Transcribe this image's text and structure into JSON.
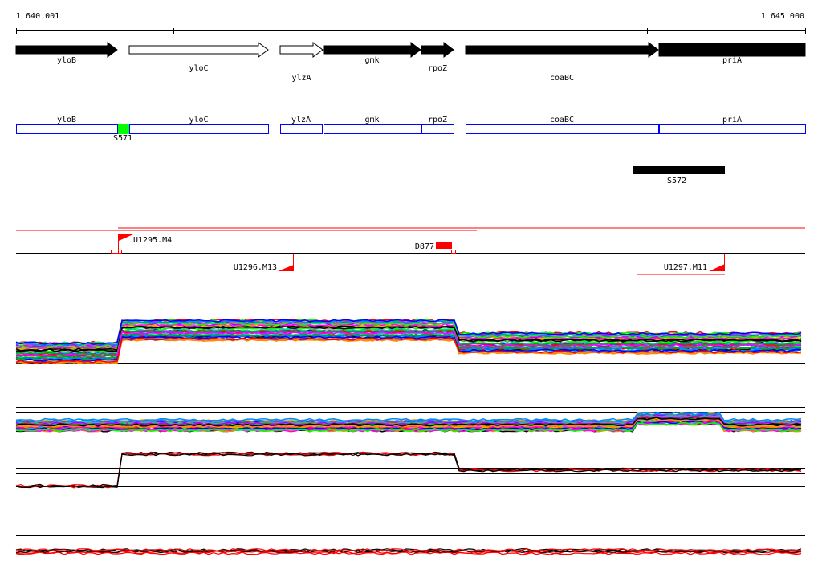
{
  "axis": {
    "start_label": "1 640 001",
    "end_label": "1 645 000"
  },
  "genes": [
    {
      "name": "yloB",
      "strand": "filled"
    },
    {
      "name": "yloC",
      "strand": "open"
    },
    {
      "name": "ylzA",
      "strand": "open"
    },
    {
      "name": "gmk",
      "strand": "filled"
    },
    {
      "name": "rpoZ",
      "strand": "filled"
    },
    {
      "name": "coaBC",
      "strand": "filled"
    },
    {
      "name": "priA",
      "strand": "filled"
    }
  ],
  "segments": {
    "green_label": "S571",
    "black_label": "S572"
  },
  "features": {
    "flag1": "U1295.M4",
    "flag2": "U1296.M13",
    "flag3": "U1297.M11",
    "deletion": "D877"
  },
  "colors": {
    "accent_red": "#ff0000",
    "box_blue": "#0000ff",
    "segment_green": "#00ff00"
  }
}
